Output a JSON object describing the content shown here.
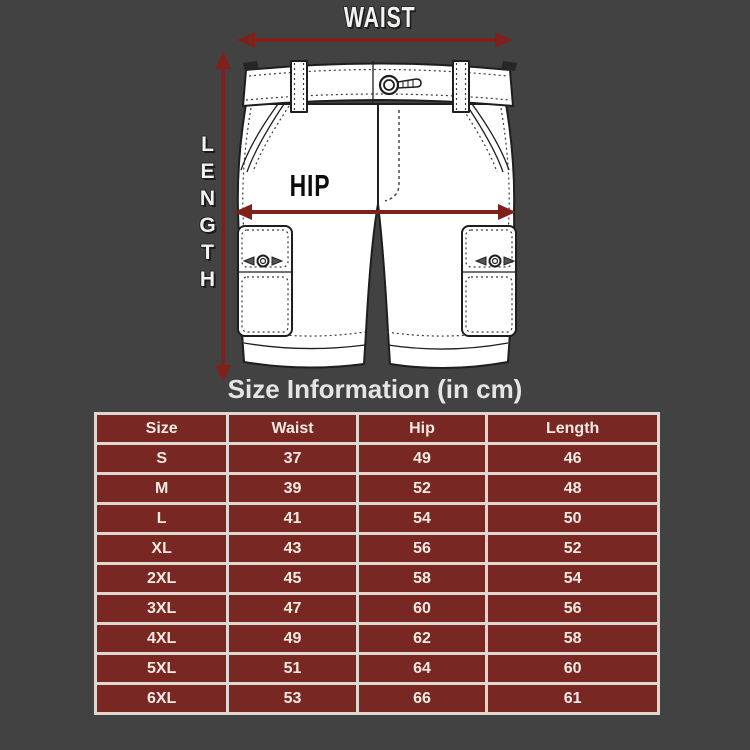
{
  "page": {
    "background": "#424242"
  },
  "diagram": {
    "garment": "cargo-shorts-line-art",
    "waist_label": "WAIST",
    "length_label": "LENGTH",
    "hip_label": "HIP",
    "arrow_color": "#7e211a"
  },
  "title": "Size Information (in cm)",
  "table": {
    "cell_bg": "#792722",
    "border_color": "#ded8d1",
    "text_color": "#f0eae3",
    "columns": [
      "Size",
      "Waist",
      "Hip",
      "Length"
    ],
    "rows": [
      [
        "S",
        "37",
        "49",
        "46"
      ],
      [
        "M",
        "39",
        "52",
        "48"
      ],
      [
        "L",
        "41",
        "54",
        "50"
      ],
      [
        "XL",
        "43",
        "56",
        "52"
      ],
      [
        "2XL",
        "45",
        "58",
        "54"
      ],
      [
        "3XL",
        "47",
        "60",
        "56"
      ],
      [
        "4XL",
        "49",
        "62",
        "58"
      ],
      [
        "5XL",
        "51",
        "64",
        "60"
      ],
      [
        "6XL",
        "53",
        "66",
        "61"
      ]
    ]
  },
  "chart_data": {
    "type": "table",
    "title": "Size Information (in cm)",
    "columns": [
      "Size",
      "Waist",
      "Hip",
      "Length"
    ],
    "rows": [
      [
        "S",
        37,
        49,
        46
      ],
      [
        "M",
        39,
        52,
        48
      ],
      [
        "L",
        41,
        54,
        50
      ],
      [
        "XL",
        43,
        56,
        52
      ],
      [
        "2XL",
        45,
        58,
        54
      ],
      [
        "3XL",
        47,
        60,
        56
      ],
      [
        "4XL",
        49,
        62,
        58
      ],
      [
        "5XL",
        51,
        64,
        60
      ],
      [
        "6XL",
        53,
        66,
        61
      ]
    ]
  }
}
